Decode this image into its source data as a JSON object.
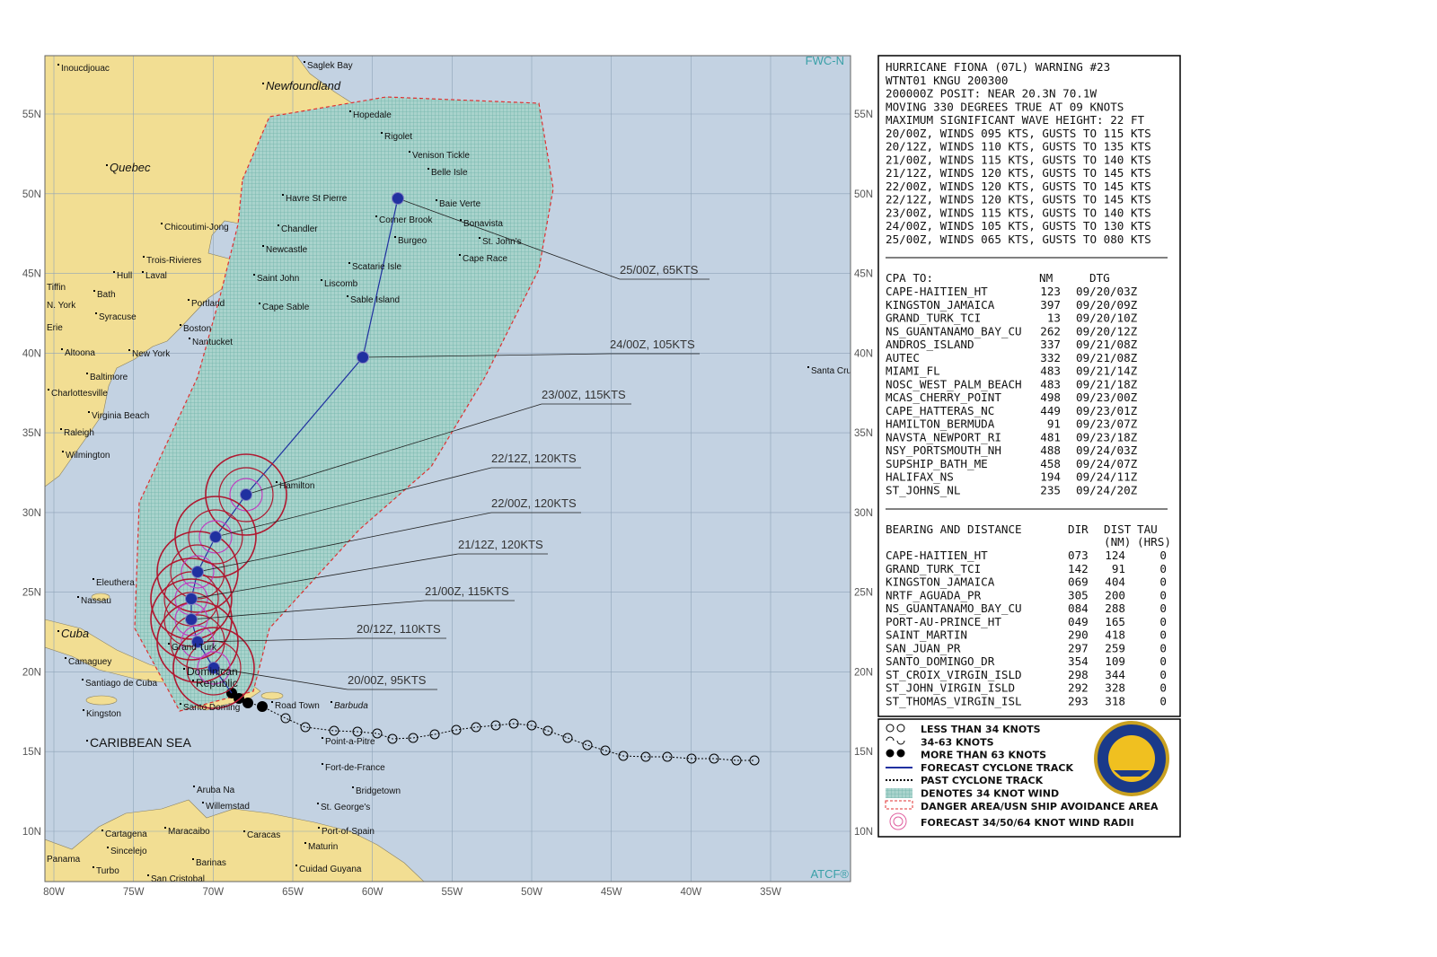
{
  "map": {
    "corner_top": "FWC-N",
    "corner_bottom": "ATCF®",
    "lat_ticks": [
      {
        "value": 10,
        "label": "10N"
      },
      {
        "value": 15,
        "label": "15N"
      },
      {
        "value": 20,
        "label": "20N"
      },
      {
        "value": 25,
        "label": "25N"
      },
      {
        "value": 30,
        "label": "30N"
      },
      {
        "value": 35,
        "label": "35N"
      },
      {
        "value": 40,
        "label": "40N"
      },
      {
        "value": 45,
        "label": "45N"
      },
      {
        "value": 50,
        "label": "50N"
      },
      {
        "value": 55,
        "label": "55N"
      }
    ],
    "lon_ticks": [
      {
        "value": -80,
        "label": "80W"
      },
      {
        "value": -75,
        "label": "75W"
      },
      {
        "value": -70,
        "label": "70W"
      },
      {
        "value": -65,
        "label": "65W"
      },
      {
        "value": -60,
        "label": "60W"
      },
      {
        "value": -55,
        "label": "55W"
      },
      {
        "value": -50,
        "label": "50W"
      },
      {
        "value": -45,
        "label": "45W"
      },
      {
        "value": -40,
        "label": "40W"
      },
      {
        "value": -35,
        "label": "35W"
      }
    ],
    "places": [
      "Inoucdjouac",
      "Saglek Bay",
      "Newfoundland",
      "Quebec",
      "Hopedale",
      "Rigolet",
      "Venison Tickle",
      "Belle Isle",
      "Havre St Pierre",
      "Baie Verte",
      "Corner Brook",
      "Bonavista",
      "Chicoutimi-Jong",
      "Chandler",
      "Burgeo",
      "St. John's",
      "Newcastle",
      "Trois-Rivieres",
      "Scatarie Isle",
      "Cape Race",
      "Hull",
      "Laval",
      "Saint John",
      "Liscomb",
      "Tiffin",
      "Bath",
      "Sable Island",
      "Portland",
      "N. York",
      "Cape Sable",
      "Syracuse",
      "Boston",
      "Erie",
      "Nantucket",
      "Altoona",
      "New York",
      "Santa Cru",
      "Baltimore",
      "Charlottesville",
      "Virginia Beach",
      "Raleigh",
      "Wilmington",
      "Hamilton",
      "Eleuthera",
      "Nassau",
      "Cuba",
      "Grand Turk",
      "Camaguey",
      "Dominican",
      "Republic",
      "Santiago de Cuba",
      "Barbuda",
      "Road Town",
      "Santo Doming",
      "Kingston",
      "Point-a-Pitre",
      "CARIBBEAN SEA",
      "Fort-de-France",
      "Bridgetown",
      "Aruba Na",
      "Willemstad",
      "St. George's",
      "Cartagena",
      "Maracaibo",
      "Caracas",
      "Port-of-Spain",
      "Sincelejo",
      "Maturin",
      "Panama",
      "Barinas",
      "Turbo",
      "Cuidad Guyana",
      "San Cristobal"
    ],
    "forecast_labels": [
      "25/00Z,  65KTS",
      "24/00Z, 105KTS",
      "23/00Z, 115KTS",
      "22/12Z, 120KTS",
      "22/00Z, 120KTS",
      "21/12Z, 120KTS",
      "21/00Z, 115KTS",
      "20/12Z, 110KTS",
      "20/00Z,  95KTS"
    ]
  },
  "bulletin": {
    "lines": [
      "HURRICANE FIONA (07L) WARNING #23",
      "WTNT01 KNGU 200300",
      "200000Z POSIT: NEAR 20.3N 70.1W",
      "MOVING 330 DEGREES TRUE AT 09 KNOTS",
      "MAXIMUM SIGNIFICANT WAVE HEIGHT: 22 FT",
      "20/00Z, WINDS 095 KTS, GUSTS TO 115 KTS",
      "20/12Z, WINDS 110 KTS, GUSTS TO 135 KTS",
      "21/00Z, WINDS 115 KTS, GUSTS TO 140 KTS",
      "21/12Z, WINDS 120 KTS, GUSTS TO 145 KTS",
      "22/00Z, WINDS 120 KTS, GUSTS TO 145 KTS",
      "22/12Z, WINDS 120 KTS, GUSTS TO 145 KTS",
      "23/00Z, WINDS 115 KTS, GUSTS TO 140 KTS",
      "24/00Z, WINDS 105 KTS, GUSTS TO 130 KTS",
      "25/00Z, WINDS 065 KTS, GUSTS TO 080 KTS"
    ]
  },
  "cpa": {
    "header": [
      "CPA TO:",
      "NM",
      "DTG"
    ],
    "rows": [
      [
        "CAPE-HAITIEN_HT",
        "123",
        "09/20/03Z"
      ],
      [
        "KINGSTON_JAMAICA",
        "397",
        "09/20/09Z"
      ],
      [
        "GRAND_TURK_TCI",
        "13",
        "09/20/10Z"
      ],
      [
        "NS_GUANTANAMO_BAY_CU",
        "262",
        "09/20/12Z"
      ],
      [
        "ANDROS_ISLAND",
        "337",
        "09/21/08Z"
      ],
      [
        "AUTEC",
        "332",
        "09/21/08Z"
      ],
      [
        "MIAMI_FL",
        "483",
        "09/21/14Z"
      ],
      [
        "NOSC_WEST_PALM_BEACH",
        "483",
        "09/21/18Z"
      ],
      [
        "MCAS_CHERRY_POINT",
        "498",
        "09/23/00Z"
      ],
      [
        "CAPE_HATTERAS_NC",
        "449",
        "09/23/01Z"
      ],
      [
        "HAMILTON_BERMUDA",
        "91",
        "09/23/07Z"
      ],
      [
        "NAVSTA_NEWPORT_RI",
        "481",
        "09/23/18Z"
      ],
      [
        "NSY_PORTSMOUTH_NH",
        "488",
        "09/24/03Z"
      ],
      [
        "SUPSHIP_BATH_ME",
        "458",
        "09/24/07Z"
      ],
      [
        "HALIFAX_NS",
        "194",
        "09/24/11Z"
      ],
      [
        "ST_JOHNS_NL",
        "235",
        "09/24/20Z"
      ]
    ]
  },
  "bearing": {
    "header": [
      "BEARING AND DISTANCE",
      "DIR",
      "DIST",
      "TAU"
    ],
    "subheader": [
      "(NM)",
      "(HRS)"
    ],
    "rows": [
      [
        "CAPE-HAITIEN_HT",
        "073",
        "124",
        "0"
      ],
      [
        "GRAND_TURK_TCI",
        "142",
        "91",
        "0"
      ],
      [
        "KINGSTON_JAMAICA",
        "069",
        "404",
        "0"
      ],
      [
        "NRTF_AGUADA_PR",
        "305",
        "200",
        "0"
      ],
      [
        "NS_GUANTANAMO_BAY_CU",
        "084",
        "288",
        "0"
      ],
      [
        "PORT-AU-PRINCE_HT",
        "049",
        "165",
        "0"
      ],
      [
        "SAINT_MARTIN",
        "290",
        "418",
        "0"
      ],
      [
        "SAN_JUAN_PR",
        "297",
        "259",
        "0"
      ],
      [
        "SANTO_DOMINGO_DR",
        "354",
        "109",
        "0"
      ],
      [
        "ST_CROIX_VIRGIN_ISLD",
        "298",
        "344",
        "0"
      ],
      [
        "ST_JOHN_VIRGIN_ISLD",
        "292",
        "328",
        "0"
      ],
      [
        "ST_THOMAS_VIRGIN_ISL",
        "293",
        "318",
        "0"
      ]
    ]
  },
  "legend": [
    "LESS THAN 34 KNOTS",
    "34-63 KNOTS",
    "MORE THAN 63 KNOTS",
    "FORECAST CYCLONE TRACK",
    "PAST CYCLONE TRACK",
    "DENOTES 34 KNOT WIND",
    "DANGER AREA/USN SHIP AVOIDANCE AREA",
    "FORECAST 34/50/64 KNOT WIND RADII"
  ]
}
